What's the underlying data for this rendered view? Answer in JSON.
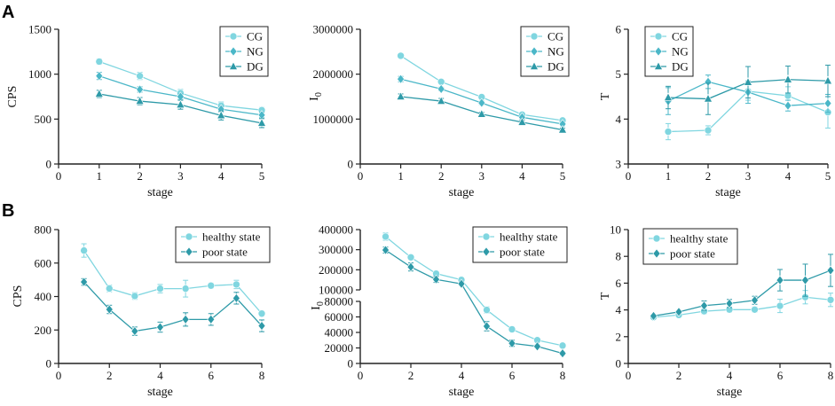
{
  "panel_labels": {
    "a": "A",
    "b": "B"
  },
  "colors": {
    "light": "#80D6E0",
    "mid": "#4BB7C8",
    "dark": "#2E9AA8"
  },
  "chart_data": [
    {
      "id": "a1",
      "type": "line",
      "title": "",
      "xlabel": "stage",
      "ylabel": "CPS",
      "xlim": [
        0,
        5
      ],
      "ylim": [
        0,
        1500
      ],
      "xticks": [
        "0",
        "1",
        "2",
        "3",
        "4",
        "5"
      ],
      "yticks": [
        "0",
        "500",
        "1000",
        "1500"
      ],
      "x": [
        1,
        2,
        3,
        4,
        5
      ],
      "series": [
        {
          "name": "CG",
          "marker": "circle",
          "color": "#80D6E0",
          "values": [
            1140,
            980,
            790,
            650,
            600
          ],
          "errors": [
            30,
            40,
            40,
            40,
            30
          ]
        },
        {
          "name": "NG",
          "marker": "diamond",
          "color": "#4BB7C8",
          "values": [
            980,
            830,
            750,
            610,
            545
          ],
          "errors": [
            40,
            30,
            30,
            30,
            30
          ]
        },
        {
          "name": "DG",
          "marker": "triangle",
          "color": "#2E9AA8",
          "values": [
            780,
            700,
            660,
            540,
            455
          ],
          "errors": [
            40,
            40,
            50,
            50,
            50
          ]
        }
      ]
    },
    {
      "id": "a2",
      "type": "line",
      "title": "",
      "xlabel": "stage",
      "ylabel": "I",
      "ylabel_sub": "0",
      "xlim": [
        0,
        5
      ],
      "ylim": [
        0,
        3000000
      ],
      "xticks": [
        "0",
        "1",
        "2",
        "3",
        "4",
        "5"
      ],
      "yticks": [
        "0",
        "1000000",
        "2000000",
        "3000000"
      ],
      "x": [
        1,
        2,
        3,
        4,
        5
      ],
      "series": [
        {
          "name": "CG",
          "marker": "circle",
          "color": "#80D6E0",
          "values": [
            2410000,
            1830000,
            1490000,
            1100000,
            970000
          ],
          "errors": [
            50000,
            40000,
            40000,
            40000,
            40000
          ]
        },
        {
          "name": "NG",
          "marker": "diamond",
          "color": "#4BB7C8",
          "values": [
            1890000,
            1670000,
            1360000,
            1040000,
            890000
          ],
          "errors": [
            60000,
            40000,
            40000,
            40000,
            40000
          ]
        },
        {
          "name": "DG",
          "marker": "triangle",
          "color": "#2E9AA8",
          "values": [
            1500000,
            1400000,
            1110000,
            930000,
            760000
          ],
          "errors": [
            60000,
            60000,
            40000,
            40000,
            40000
          ]
        }
      ]
    },
    {
      "id": "a3",
      "type": "line",
      "title": "",
      "xlabel": "stage",
      "ylabel": "T",
      "xlim": [
        0,
        5
      ],
      "ylim": [
        3,
        6
      ],
      "xticks": [
        "0",
        "1",
        "2",
        "3",
        "4",
        "5"
      ],
      "yticks": [
        "3",
        "4",
        "5",
        "6"
      ],
      "x": [
        1,
        2,
        3,
        4,
        5
      ],
      "series": [
        {
          "name": "CG",
          "marker": "circle",
          "color": "#80D6E0",
          "values": [
            3.72,
            3.75,
            4.62,
            4.52,
            4.15
          ],
          "errors": [
            0.18,
            0.1,
            0.2,
            0.2,
            0.35
          ]
        },
        {
          "name": "NG",
          "marker": "diamond",
          "color": "#4BB7C8",
          "values": [
            4.4,
            4.83,
            4.6,
            4.3,
            4.35
          ],
          "errors": [
            0.3,
            0.15,
            0.25,
            0.12,
            0.2
          ]
        },
        {
          "name": "DG",
          "marker": "triangle",
          "color": "#2E9AA8",
          "values": [
            4.48,
            4.45,
            4.82,
            4.88,
            4.85
          ],
          "errors": [
            0.25,
            0.35,
            0.35,
            0.3,
            0.35
          ]
        }
      ]
    },
    {
      "id": "b1",
      "type": "line",
      "title": "",
      "xlabel": "stage",
      "ylabel": "CPS",
      "xlim": [
        0,
        8
      ],
      "ylim": [
        0,
        800
      ],
      "xticks": [
        "0",
        "2",
        "4",
        "6",
        "8"
      ],
      "yticks": [
        "0",
        "200",
        "400",
        "600",
        "800"
      ],
      "x": [
        1,
        2,
        3,
        4,
        5,
        6,
        7,
        8
      ],
      "series": [
        {
          "name": "healthy state",
          "marker": "circle",
          "color": "#80D6E0",
          "values": [
            675,
            448,
            403,
            447,
            447,
            465,
            472,
            298
          ],
          "errors": [
            40,
            20,
            20,
            25,
            50,
            15,
            25,
            15
          ]
        },
        {
          "name": "poor state",
          "marker": "diamond",
          "color": "#2E9AA8",
          "values": [
            487,
            323,
            193,
            217,
            263,
            263,
            390,
            225
          ],
          "errors": [
            20,
            25,
            25,
            30,
            40,
            35,
            35,
            35
          ]
        }
      ]
    },
    {
      "id": "b2",
      "type": "line",
      "title": "",
      "xlabel": "stage",
      "ylabel": "I",
      "ylabel_sub": "0",
      "xlim": [
        0,
        8
      ],
      "broken_axis": true,
      "ylim_upper": [
        100000,
        400000
      ],
      "ylim_lower": [
        0,
        80000
      ],
      "xticks": [
        "0",
        "2",
        "4",
        "6",
        "8"
      ],
      "yticks_upper": [
        "100000",
        "200000",
        "300000",
        "400000"
      ],
      "yticks_lower": [
        "0",
        "20000",
        "40000",
        "60000",
        "80000"
      ],
      "x": [
        1,
        2,
        3,
        4,
        5,
        6,
        7,
        8
      ],
      "series": [
        {
          "name": "healthy state",
          "marker": "circle",
          "color": "#80D6E0",
          "values": [
            365000,
            262000,
            181000,
            150000,
            69000,
            44000,
            30000,
            23000
          ],
          "errors": [
            18000,
            10000,
            10000,
            8000,
            4000,
            3000,
            2000,
            2000
          ]
        },
        {
          "name": "poor state",
          "marker": "diamond",
          "color": "#2E9AA8",
          "values": [
            298000,
            214000,
            152000,
            130000,
            48000,
            26000,
            22000,
            13000
          ],
          "errors": [
            15000,
            20000,
            15000,
            8000,
            6000,
            4000,
            2000,
            2000
          ]
        }
      ]
    },
    {
      "id": "b3",
      "type": "line",
      "title": "",
      "xlabel": "stage",
      "ylabel": "T",
      "xlim": [
        0,
        8
      ],
      "ylim": [
        0,
        10
      ],
      "xticks": [
        "0",
        "2",
        "4",
        "6",
        "8"
      ],
      "yticks": [
        "0",
        "2",
        "4",
        "6",
        "8",
        "10"
      ],
      "x": [
        1,
        2,
        3,
        4,
        5,
        6,
        7,
        8
      ],
      "series": [
        {
          "name": "healthy state",
          "marker": "circle",
          "color": "#80D6E0",
          "values": [
            3.45,
            3.62,
            3.9,
            4.02,
            4.02,
            4.3,
            4.95,
            4.75
          ],
          "errors": [
            0.1,
            0.1,
            0.2,
            0.2,
            0.2,
            0.5,
            0.5,
            0.5
          ]
        },
        {
          "name": "poor state",
          "marker": "diamond",
          "color": "#2E9AA8",
          "values": [
            3.55,
            3.85,
            4.32,
            4.48,
            4.72,
            6.22,
            6.22,
            6.95
          ],
          "errors": [
            0.1,
            0.1,
            0.35,
            0.3,
            0.3,
            0.8,
            1.2,
            1.2
          ]
        }
      ]
    }
  ]
}
